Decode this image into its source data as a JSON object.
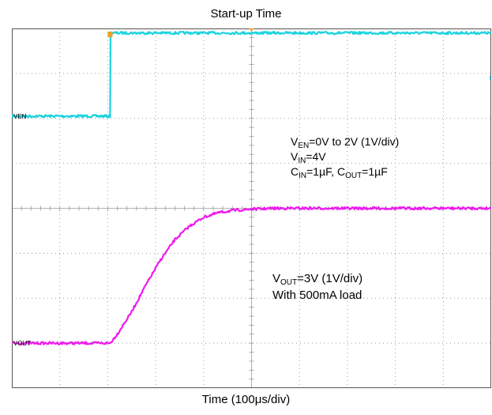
{
  "title": "Start-up Time",
  "xlabel": "Time (100μs/div)",
  "colors": {
    "background": "#ffffff",
    "frame": "#555555",
    "grid": "#9a9a9a",
    "ch_en": "#19d3df",
    "ch_out": "#ee1aee",
    "marker": "#f0a020"
  },
  "annotation_en": {
    "line1": {
      "v": "V",
      "sub": "EN",
      "rest": "=0V to 2V (1V/div)"
    },
    "line2": {
      "v": "V",
      "sub": "IN",
      "rest": "=4V"
    },
    "line3": {
      "c1": "C",
      "c1sub": "IN",
      "c1rest": "=1µF, ",
      "c2": "C",
      "c2sub": "OUT",
      "c2rest": "=1µF"
    }
  },
  "annotation_out": {
    "line1": {
      "v": "V",
      "sub": "OUT",
      "rest": "=3V (1V/div)"
    },
    "line2": "With 500mA load"
  },
  "chart_data": {
    "type": "line",
    "title": "Start-up Time",
    "xlabel": "Time (100μs/div)",
    "ylabel": "",
    "x_divisions": 10,
    "y_divisions": 8,
    "grid": true,
    "x_unit": "div",
    "y_unit": "div",
    "series": [
      {
        "name": "VEN",
        "label": "VEN",
        "x": [
          0,
          2.05,
          2.06,
          10
        ],
        "y": [
          6.05,
          6.05,
          7.9,
          7.9
        ]
      },
      {
        "name": "VOUT",
        "label": "VOUT",
        "x": [
          0,
          2.05,
          2.2,
          2.5,
          2.8,
          3.1,
          3.4,
          3.7,
          4.0,
          4.3,
          4.6,
          5.0,
          5.5,
          6.0,
          10
        ],
        "y": [
          1.0,
          1.0,
          1.2,
          1.7,
          2.3,
          2.85,
          3.3,
          3.6,
          3.8,
          3.9,
          3.95,
          3.98,
          4.0,
          4.0,
          4.0
        ]
      }
    ]
  }
}
